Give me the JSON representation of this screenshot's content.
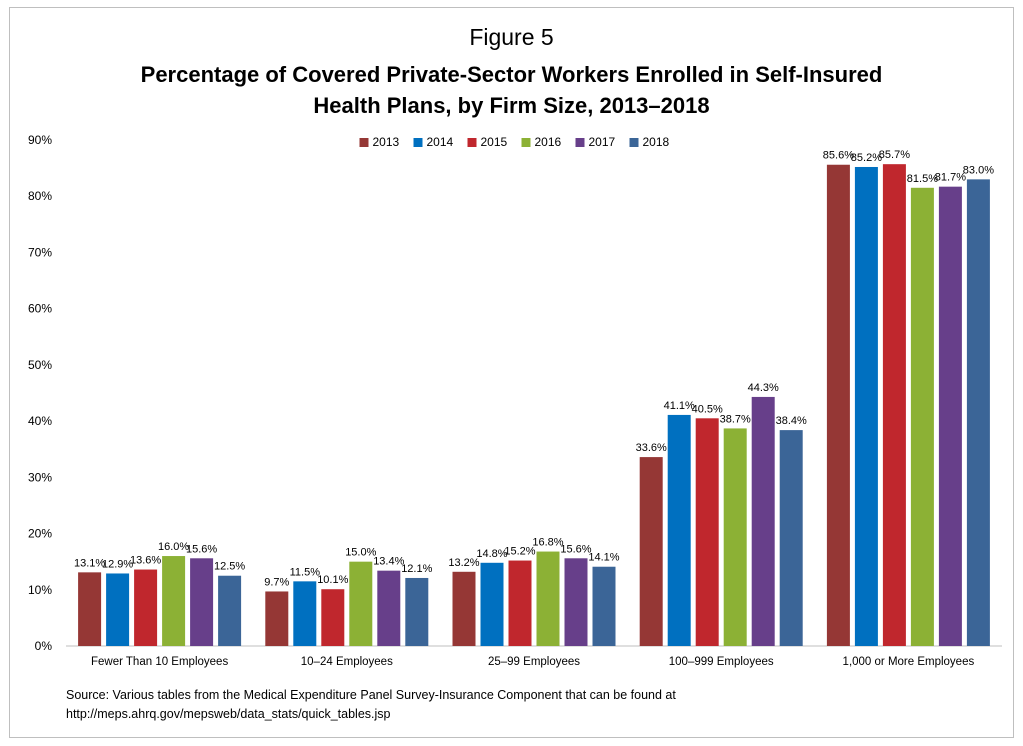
{
  "figure_label": "Figure 5",
  "title_line1": "Percentage of Covered Private-Sector Workers Enrolled in Self-Insured",
  "title_line2": "Health Plans, by Firm Size, 2013–2018",
  "source_line1": "Source: Various tables from the Medical Expenditure Panel Survey-Insurance Component that can be found at",
  "source_line2": "http://meps.ahrq.gov/mepsweb/data_stats/quick_tables.jsp",
  "chart_data": {
    "type": "bar",
    "title": "Percentage of Covered Private-Sector Workers Enrolled in Self-Insured Health Plans, by Firm Size, 2013–2018",
    "xlabel": "",
    "ylabel": "",
    "ylim": [
      0,
      90
    ],
    "yticks": [
      "0%",
      "10%",
      "20%",
      "30%",
      "40%",
      "50%",
      "60%",
      "70%",
      "80%",
      "90%"
    ],
    "grid": false,
    "legend_position": "top",
    "categories": [
      "Fewer Than 10 Employees",
      "10–24 Employees",
      "25–99 Employees",
      "100–999 Employees",
      "1,000 or More Employees"
    ],
    "series": [
      {
        "name": "2013",
        "color": "#953735",
        "values": [
          13.1,
          9.7,
          13.2,
          33.6,
          85.6
        ],
        "labels": [
          "13.1%",
          "9.7%",
          "13.2%",
          "33.6%",
          "85.6%"
        ]
      },
      {
        "name": "2014",
        "color": "#0070c0",
        "values": [
          12.9,
          11.5,
          14.8,
          41.1,
          85.2
        ],
        "labels": [
          "12.9%",
          "11.5%",
          "14.8%",
          "41.1%",
          "85.2%"
        ]
      },
      {
        "name": "2015",
        "color": "#c0272d",
        "values": [
          13.6,
          10.1,
          15.2,
          40.5,
          85.7
        ],
        "labels": [
          "13.6%",
          "10.1%",
          "15.2%",
          "40.5%",
          "85.7%"
        ]
      },
      {
        "name": "2016",
        "color": "#8cb135",
        "values": [
          16.0,
          15.0,
          16.8,
          38.7,
          81.5
        ],
        "labels": [
          "16.0%",
          "15.0%",
          "16.8%",
          "38.7%",
          "81.5%"
        ]
      },
      {
        "name": "2017",
        "color": "#673f8a",
        "values": [
          15.6,
          13.4,
          15.6,
          44.3,
          81.7
        ],
        "labels": [
          "15.6%",
          "13.4%",
          "15.6%",
          "44.3%",
          "81.7%"
        ]
      },
      {
        "name": "2018",
        "color": "#3b6597",
        "values": [
          12.5,
          12.1,
          14.1,
          38.4,
          83.0
        ],
        "labels": [
          "12.5%",
          "12.1%",
          "14.1%",
          "38.4%",
          "83.0%"
        ]
      }
    ]
  }
}
